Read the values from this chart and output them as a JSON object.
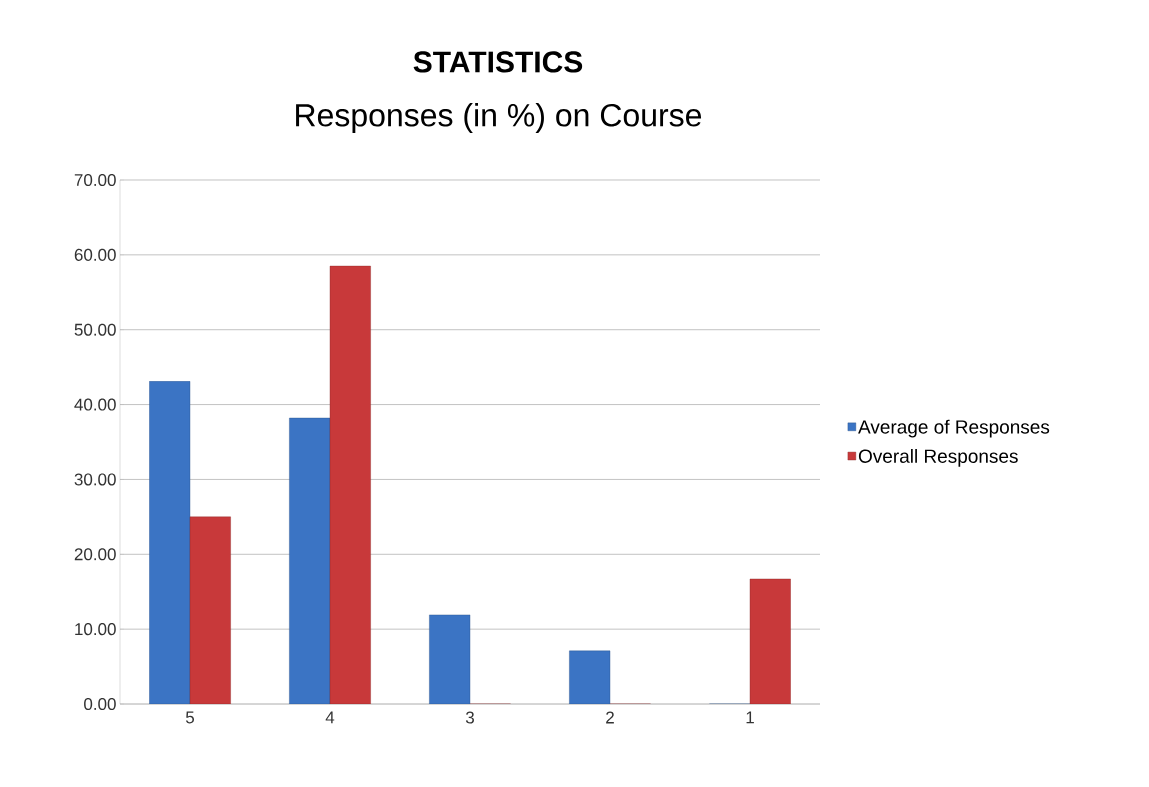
{
  "chart_data": {
    "type": "bar",
    "title": "STATISTICS",
    "subtitle": "Responses (in %) on Course",
    "categories": [
      "5",
      "4",
      "3",
      "2",
      "1"
    ],
    "series": [
      {
        "name": "Average of Responses",
        "color": "#3b74c4",
        "values": [
          43.1,
          38.2,
          11.9,
          7.1,
          0
        ]
      },
      {
        "name": "Overall Responses",
        "color": "#c8393a",
        "values": [
          25.0,
          58.5,
          0,
          0,
          16.7
        ]
      }
    ],
    "ylim": [
      0,
      70
    ],
    "yticks": [
      {
        "value": 0,
        "label": "0.00"
      },
      {
        "value": 10,
        "label": "10.00"
      },
      {
        "value": 20,
        "label": "20.00"
      },
      {
        "value": 30,
        "label": "30.00"
      },
      {
        "value": 40,
        "label": "40.00"
      },
      {
        "value": 50,
        "label": "50.00"
      },
      {
        "value": 60,
        "label": "60.00"
      },
      {
        "value": 70,
        "label": "70.00"
      }
    ],
    "grid": "y",
    "legend": "right"
  }
}
